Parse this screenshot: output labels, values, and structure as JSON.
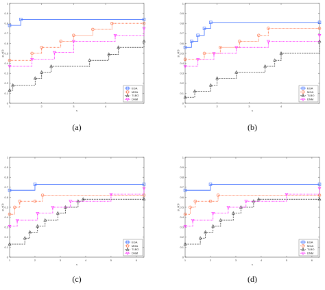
{
  "chart_data": [
    {
      "type": "line",
      "step": "post",
      "caption": "(a)",
      "xlabel": "x",
      "ylabel": "p_x(t)",
      "xlim": [
        1,
        5.2
      ],
      "ylim": [
        0,
        1
      ],
      "xticks": [
        "1",
        "2",
        "3",
        "4"
      ],
      "xtick_values": [
        1,
        2,
        3,
        4
      ],
      "yticks": [
        "0",
        "0.1",
        "0.2",
        "0.3",
        "0.4",
        "0.5",
        "0.6",
        "0.7",
        "0.8",
        "0.9",
        "1"
      ],
      "legend_position": "bottom-right",
      "series": [
        {
          "name": "EGA",
          "color": "#3366ff",
          "style": "solid",
          "marker": "square",
          "x": [
            1.0,
            1.35,
            5.2
          ],
          "y": [
            0.78,
            0.84,
            0.84
          ]
        },
        {
          "name": "MGA",
          "color": "#ff5522",
          "style": "dotted",
          "marker": "circle",
          "x": [
            1.0,
            1.7,
            2.0,
            2.6,
            3.0,
            3.6,
            4.2,
            5.2
          ],
          "y": [
            0.43,
            0.5,
            0.56,
            0.62,
            0.68,
            0.74,
            0.8,
            0.8
          ]
        },
        {
          "name": "TLBO",
          "color": "#333333",
          "style": "dashed",
          "marker": "triangle",
          "x": [
            1.0,
            1.1,
            1.8,
            2.0,
            2.3,
            3.5,
            4.1,
            4.4,
            5.2
          ],
          "y": [
            0.13,
            0.18,
            0.25,
            0.31,
            0.37,
            0.43,
            0.49,
            0.56,
            0.62
          ]
        },
        {
          "name": "DNM",
          "color": "#ff22ff",
          "style": "dashdot",
          "marker": "triangle-down",
          "x": [
            1.0,
            1.7,
            2.4,
            3.0,
            4.3,
            5.2
          ],
          "y": [
            0.37,
            0.44,
            0.51,
            0.62,
            0.68,
            0.75
          ]
        }
      ]
    },
    {
      "type": "line",
      "step": "post",
      "caption": "(b)",
      "xlabel": "x",
      "ylabel": "p_x(t)",
      "xlim": [
        1,
        5.2
      ],
      "ylim": [
        0,
        1
      ],
      "xticks": [
        "1",
        "2",
        "3",
        "4"
      ],
      "xtick_values": [
        1,
        2,
        3,
        4
      ],
      "yticks": [
        "0",
        "0.1",
        "0.2",
        "0.3",
        "0.4",
        "0.5",
        "0.6",
        "0.7",
        "0.8",
        "0.9",
        "1"
      ],
      "legend_position": "bottom-right",
      "series": [
        {
          "name": "EGA",
          "color": "#3366ff",
          "style": "solid",
          "marker": "square",
          "x": [
            1.0,
            1.2,
            1.4,
            1.6,
            1.8,
            5.2
          ],
          "y": [
            0.56,
            0.62,
            0.68,
            0.75,
            0.81,
            0.81
          ]
        },
        {
          "name": "MGA",
          "color": "#ff5522",
          "style": "dotted",
          "marker": "circle",
          "x": [
            1.0,
            1.6,
            2.1,
            2.7,
            3.3,
            3.6,
            5.2
          ],
          "y": [
            0.44,
            0.5,
            0.56,
            0.62,
            0.68,
            0.75,
            0.75
          ]
        },
        {
          "name": "TLBO",
          "color": "#333333",
          "style": "dashed",
          "marker": "triangle",
          "x": [
            1.0,
            1.3,
            1.8,
            2.0,
            2.6,
            3.5,
            3.8,
            4.0,
            5.2
          ],
          "y": [
            0.06,
            0.12,
            0.18,
            0.25,
            0.31,
            0.37,
            0.43,
            0.5,
            0.62
          ]
        },
        {
          "name": "DNM",
          "color": "#ff22ff",
          "style": "dashdot",
          "marker": "triangle-down",
          "x": [
            1.0,
            1.4,
            1.9,
            2.6,
            3.6,
            5.2
          ],
          "y": [
            0.37,
            0.44,
            0.5,
            0.56,
            0.62,
            0.68
          ]
        }
      ]
    },
    {
      "type": "line",
      "step": "post",
      "caption": "(c)",
      "xlabel": "x",
      "ylabel": "p_x(t)",
      "xlim": [
        1,
        6.3
      ],
      "ylim": [
        0,
        1
      ],
      "xticks": [
        "1",
        "2",
        "3",
        "4",
        "5",
        "6"
      ],
      "xtick_values": [
        1,
        2,
        3,
        4,
        5,
        6
      ],
      "yticks": [
        "0",
        "0.1",
        "0.2",
        "0.3",
        "0.4",
        "0.5",
        "0.6",
        "0.7",
        "0.8",
        "0.9",
        "1"
      ],
      "legend_position": "bottom-right",
      "series": [
        {
          "name": "EGA",
          "color": "#3366ff",
          "style": "solid",
          "marker": "square",
          "x": [
            1.0,
            2.0,
            6.3
          ],
          "y": [
            0.67,
            0.73,
            0.73
          ]
        },
        {
          "name": "MGA",
          "color": "#ff5522",
          "style": "dotted",
          "marker": "circle",
          "x": [
            1.0,
            1.2,
            1.4,
            2.0,
            2.3,
            6.3
          ],
          "y": [
            0.43,
            0.5,
            0.56,
            0.56,
            0.62,
            0.62
          ]
        },
        {
          "name": "TLBO",
          "color": "#333333",
          "style": "dashed",
          "marker": "triangle",
          "x": [
            1.0,
            1.6,
            1.8,
            2.1,
            2.4,
            2.9,
            3.2,
            3.7,
            3.9,
            6.3
          ],
          "y": [
            0.13,
            0.19,
            0.25,
            0.31,
            0.37,
            0.44,
            0.5,
            0.56,
            0.58,
            0.58
          ]
        },
        {
          "name": "DNM",
          "color": "#ff22ff",
          "style": "dashdot",
          "marker": "triangle-down",
          "x": [
            1.0,
            1.3,
            2.1,
            2.7,
            3.4,
            5.0,
            6.3
          ],
          "y": [
            0.31,
            0.37,
            0.44,
            0.5,
            0.56,
            0.63,
            0.69
          ]
        }
      ]
    },
    {
      "type": "line",
      "step": "post",
      "caption": "(d)",
      "xlabel": "x",
      "ylabel": "p_x(t)",
      "xlim": [
        1,
        6.3
      ],
      "ylim": [
        0,
        1
      ],
      "xticks": [
        "1",
        "2",
        "3",
        "4",
        "5",
        "6"
      ],
      "xtick_values": [
        1,
        2,
        3,
        4,
        5,
        6
      ],
      "yticks": [
        "0",
        "0.1",
        "0.2",
        "0.3",
        "0.4",
        "0.5",
        "0.6",
        "0.7",
        "0.8",
        "0.9",
        "1"
      ],
      "legend_position": "bottom-right",
      "series": [
        {
          "name": "EGA",
          "color": "#3366ff",
          "style": "solid",
          "marker": "square",
          "x": [
            1.0,
            2.0,
            6.3
          ],
          "y": [
            0.67,
            0.73,
            0.73
          ]
        },
        {
          "name": "MGA",
          "color": "#ff5522",
          "style": "dotted",
          "marker": "circle",
          "x": [
            1.0,
            1.2,
            1.4,
            2.0,
            2.3,
            6.3
          ],
          "y": [
            0.43,
            0.5,
            0.56,
            0.56,
            0.62,
            0.62
          ]
        },
        {
          "name": "TLBO",
          "color": "#333333",
          "style": "dashed",
          "marker": "triangle",
          "x": [
            1.0,
            1.6,
            1.8,
            2.1,
            2.4,
            2.9,
            3.2,
            3.7,
            3.9,
            6.3
          ],
          "y": [
            0.13,
            0.19,
            0.25,
            0.31,
            0.37,
            0.44,
            0.5,
            0.56,
            0.58,
            0.58
          ]
        },
        {
          "name": "DNM",
          "color": "#ff22ff",
          "style": "dashdot",
          "marker": "triangle-down",
          "x": [
            1.0,
            1.3,
            2.1,
            2.7,
            3.4,
            5.0,
            6.3
          ],
          "y": [
            0.31,
            0.37,
            0.44,
            0.5,
            0.56,
            0.63,
            0.69
          ]
        }
      ]
    }
  ]
}
